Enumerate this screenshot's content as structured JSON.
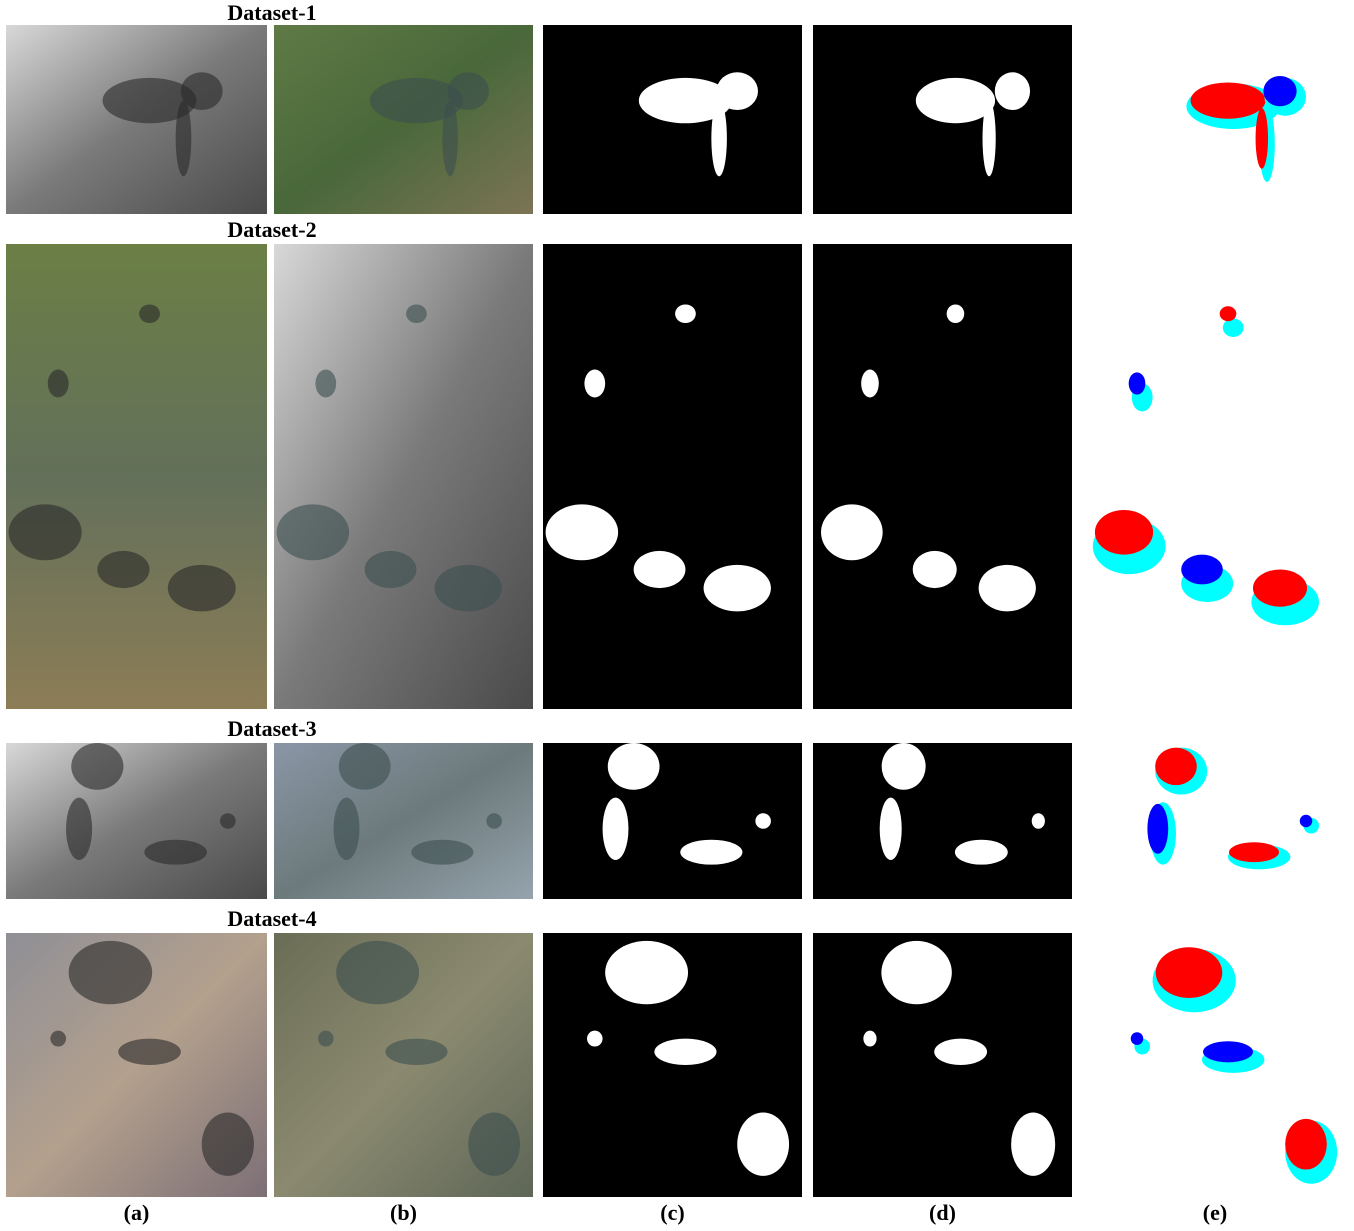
{
  "rows": [
    {
      "label": "Dataset-1"
    },
    {
      "label": "Dataset-2"
    },
    {
      "label": "Dataset-3"
    },
    {
      "label": "Dataset-4"
    }
  ],
  "columns": [
    "(a)",
    "(b)",
    "(c)",
    "(d)",
    "(e)"
  ]
}
